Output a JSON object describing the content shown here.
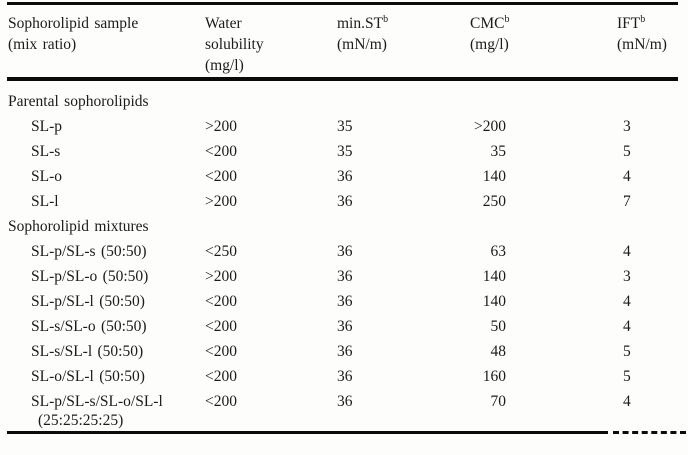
{
  "table": {
    "columns": [
      {
        "id": "sample",
        "lines": [
          "Sophorolipid sample",
          "(mix ratio)"
        ],
        "superscript": ""
      },
      {
        "id": "solubility",
        "lines": [
          "Water",
          "solubility",
          "(mg/l)"
        ],
        "superscript": ""
      },
      {
        "id": "min_st",
        "lines": [
          "min.ST",
          "(mN/m)"
        ],
        "superscript": "b"
      },
      {
        "id": "cmc",
        "lines": [
          "CMC",
          "(mg/l)"
        ],
        "superscript": "b"
      },
      {
        "id": "ift",
        "lines": [
          "IFT",
          "(mN/m)"
        ],
        "superscript": "b"
      }
    ],
    "sections": [
      {
        "title": "Parental sophorolipids",
        "rows": [
          {
            "sample": [
              "SL-p"
            ],
            "solubility": ">200",
            "min_st": "35",
            "cmc": ">200",
            "ift": "3"
          },
          {
            "sample": [
              "SL-s"
            ],
            "solubility": "<200",
            "min_st": "35",
            "cmc": "35",
            "ift": "5"
          },
          {
            "sample": [
              "SL-o"
            ],
            "solubility": "<200",
            "min_st": "36",
            "cmc": "140",
            "ift": "4"
          },
          {
            "sample": [
              "SL-l"
            ],
            "solubility": ">200",
            "min_st": "36",
            "cmc": "250",
            "ift": "7"
          }
        ]
      },
      {
        "title": "Sophorolipid mixtures",
        "rows": [
          {
            "sample": [
              "SL-p/SL-s (50:50)"
            ],
            "solubility": "<250",
            "min_st": "36",
            "cmc": "63",
            "ift": "4"
          },
          {
            "sample": [
              "SL-p/SL-o (50:50)"
            ],
            "solubility": ">200",
            "min_st": "36",
            "cmc": "140",
            "ift": "3"
          },
          {
            "sample": [
              "SL-p/SL-l (50:50)"
            ],
            "solubility": "<200",
            "min_st": "36",
            "cmc": "140",
            "ift": "4"
          },
          {
            "sample": [
              "SL-s/SL-o (50:50)"
            ],
            "solubility": "<200",
            "min_st": "36",
            "cmc": "50",
            "ift": "4"
          },
          {
            "sample": [
              "SL-s/SL-l (50:50)"
            ],
            "solubility": "<200",
            "min_st": "36",
            "cmc": "48",
            "ift": "5"
          },
          {
            "sample": [
              "SL-o/SL-l (50:50)"
            ],
            "solubility": "<200",
            "min_st": "36",
            "cmc": "160",
            "ift": "5"
          },
          {
            "sample": [
              "SL-p/SL-s/SL-o/SL-l",
              "(25:25:25:25)"
            ],
            "solubility": "<200",
            "min_st": "36",
            "cmc": "70",
            "ift": "4"
          }
        ]
      }
    ],
    "colors": {
      "text": "#1b1b1b",
      "rule": "#0b0b0b",
      "background": "#fdfdfc"
    }
  }
}
